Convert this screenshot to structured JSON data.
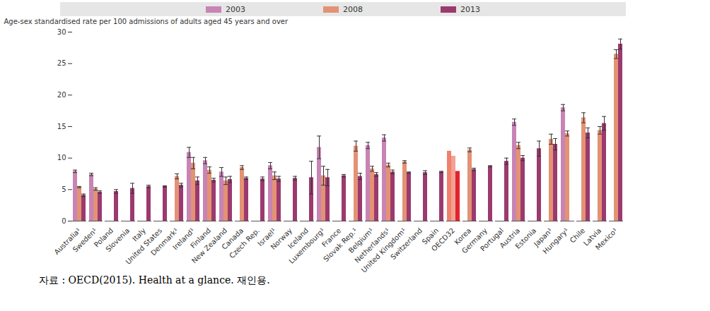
{
  "chart_data": {
    "type": "bar",
    "y_label": "Age-sex standardised rate per 100 admissions of adults aged 45 years and over",
    "caption": "자료 : OECD(2015). Health at a glance. 재인용.",
    "categories": [
      "Australia¹",
      "Sweden¹",
      "Poland",
      "Slovenia",
      "Italy",
      "United States",
      "Denmark¹",
      "Ireland¹",
      "Finland",
      "New Zealand",
      "Canada",
      "Czech Rep.",
      "Israel¹",
      "Norway",
      "Iceland",
      "Luxembourg¹",
      "France",
      "Slovak Rep.¹",
      "Belgium¹",
      "Netherlands¹",
      "United Kingdom¹",
      "Switzerland",
      "Spain",
      "OECD32",
      "Korea",
      "Germany",
      "Portugal",
      "Austria",
      "Estonia",
      "Japan¹",
      "Hungary¹",
      "Chile",
      "Latvia",
      "Mexico¹"
    ],
    "series": [
      {
        "name": "2003",
        "color": "#c784b4",
        "colors": [
          "#c784b4",
          "#c784b4",
          "#c784b4",
          "#c784b4",
          "#c784b4",
          "#c784b4",
          "#c784b4",
          "#c784b4",
          "#c784b4",
          "#c784b4",
          "#c784b4",
          "#c784b4",
          "#c784b4",
          "#c784b4",
          "#c784b4",
          "#c784b4",
          "#c784b4",
          "#c784b4",
          "#c784b4",
          "#c784b4",
          "#c784b4",
          "#c784b4",
          "#c784b4",
          "#f0806a",
          "#c784b4",
          "#c784b4",
          "#c784b4",
          "#c784b4",
          "#c784b4",
          "#c784b4",
          "#c784b4",
          "#c784b4",
          "#c784b4",
          "#c784b4"
        ],
        "values": [
          7.9,
          7.4,
          null,
          null,
          null,
          null,
          null,
          10.9,
          9.6,
          7.8,
          null,
          null,
          8.8,
          null,
          null,
          11.7,
          null,
          null,
          12.0,
          13.2,
          null,
          null,
          null,
          11.1,
          null,
          null,
          null,
          15.7,
          null,
          null,
          18.0,
          null,
          null,
          null
        ],
        "error": [
          0.2,
          0.2,
          null,
          null,
          null,
          null,
          null,
          0.8,
          0.5,
          0.7,
          null,
          null,
          0.5,
          null,
          null,
          1.8,
          null,
          null,
          0.5,
          0.5,
          null,
          null,
          null,
          null,
          null,
          null,
          null,
          0.5,
          null,
          null,
          0.5,
          null,
          null,
          null
        ]
      },
      {
        "name": "2008",
        "color": "#e39274",
        "colors": [
          "#e39274",
          "#e39274",
          "#e39274",
          "#e39274",
          "#e39274",
          "#e39274",
          "#e39274",
          "#e39274",
          "#e39274",
          "#e39274",
          "#e39274",
          "#e39274",
          "#e39274",
          "#e39274",
          "#e39274",
          "#e39274",
          "#e39274",
          "#e39274",
          "#e39274",
          "#e39274",
          "#e39274",
          "#e39274",
          "#e39274",
          "#f4a094",
          "#e39274",
          "#e39274",
          "#e39274",
          "#e39274",
          "#e39274",
          "#e39274",
          "#e39274",
          "#e39274",
          "#e39274",
          "#e39274"
        ],
        "values": [
          5.4,
          5.1,
          null,
          null,
          null,
          null,
          7.1,
          9.2,
          8.1,
          6.4,
          8.5,
          null,
          7.2,
          null,
          null,
          7.2,
          null,
          11.9,
          8.3,
          8.9,
          9.4,
          null,
          null,
          10.3,
          11.3,
          null,
          null,
          12.0,
          null,
          13.0,
          13.9,
          16.4,
          14.4,
          26.5
        ],
        "error": [
          0.1,
          0.2,
          null,
          null,
          null,
          null,
          0.4,
          0.9,
          0.5,
          0.6,
          0.3,
          null,
          0.6,
          null,
          null,
          1.5,
          null,
          0.8,
          0.4,
          0.3,
          0.2,
          null,
          null,
          null,
          0.3,
          null,
          null,
          0.5,
          null,
          0.8,
          0.4,
          0.8,
          0.6,
          0.7
        ]
      },
      {
        "name": "2013",
        "color": "#9b3a6e",
        "colors": [
          "#9b3a6e",
          "#9b3a6e",
          "#9b3a6e",
          "#9b3a6e",
          "#9b3a6e",
          "#9b3a6e",
          "#9b3a6e",
          "#9b3a6e",
          "#9b3a6e",
          "#9b3a6e",
          "#9b3a6e",
          "#9b3a6e",
          "#9b3a6e",
          "#9b3a6e",
          "#9b3a6e",
          "#9b3a6e",
          "#9b3a6e",
          "#9b3a6e",
          "#9b3a6e",
          "#9b3a6e",
          "#9b3a6e",
          "#9b3a6e",
          "#9b3a6e",
          "#e3232c",
          "#9b3a6e",
          "#9b3a6e",
          "#9b3a6e",
          "#9b3a6e",
          "#9b3a6e",
          "#9b3a6e",
          "#9b3a6e",
          "#9b3a6e",
          "#9b3a6e",
          "#9b3a6e"
        ],
        "values": [
          4.1,
          4.6,
          4.7,
          5.2,
          5.5,
          5.5,
          5.7,
          6.4,
          6.5,
          6.6,
          6.8,
          6.7,
          6.7,
          6.8,
          6.9,
          6.9,
          7.2,
          7.1,
          7.4,
          7.8,
          7.7,
          7.7,
          7.8,
          7.9,
          8.2,
          8.7,
          9.5,
          10.0,
          11.5,
          12.2,
          null,
          14.0,
          15.5,
          28.1
        ],
        "error": [
          0.2,
          0.2,
          0.3,
          0.8,
          0.2,
          0.1,
          0.3,
          0.6,
          0.3,
          0.5,
          0.2,
          0.3,
          0.4,
          0.3,
          2.6,
          1.3,
          0.2,
          0.5,
          0.3,
          0.3,
          0.1,
          0.3,
          0.1,
          null,
          0.2,
          0.1,
          0.5,
          0.4,
          1.2,
          0.9,
          null,
          0.8,
          1.1,
          0.8
        ]
      }
    ],
    "ylim": [
      0,
      30
    ],
    "yticks": [
      0,
      5,
      10,
      15,
      20,
      25,
      30
    ],
    "grid": false,
    "legend": "top"
  }
}
